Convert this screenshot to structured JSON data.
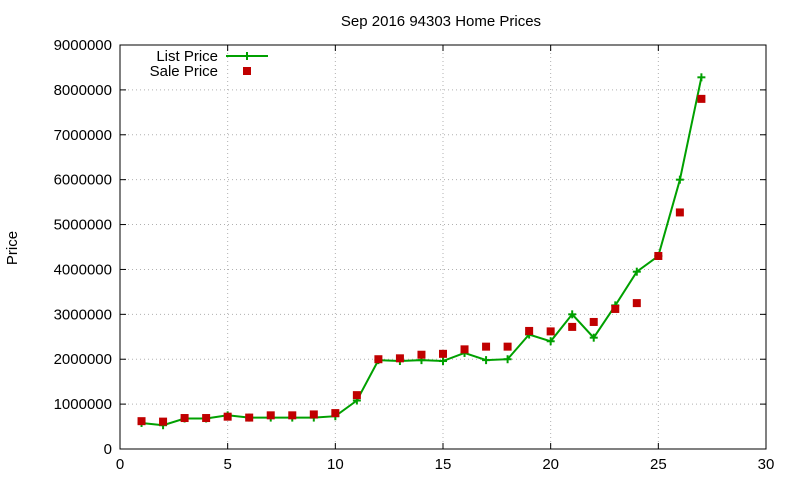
{
  "chart_data": {
    "type": "line",
    "title": "Sep 2016 94303 Home Prices",
    "xlabel": "",
    "ylabel": "Price",
    "xlim": [
      0,
      30
    ],
    "ylim": [
      0,
      9000000
    ],
    "x_ticks": [
      0,
      5,
      10,
      15,
      20,
      25,
      30
    ],
    "y_ticks": [
      0,
      1000000,
      2000000,
      3000000,
      4000000,
      5000000,
      6000000,
      7000000,
      8000000,
      9000000
    ],
    "x_tick_labels": [
      "0",
      "5",
      "10",
      "15",
      "20",
      "25",
      "30"
    ],
    "y_tick_labels": [
      "0",
      "1000000",
      "2000000",
      "3000000",
      "4000000",
      "5000000",
      "6000000",
      "7000000",
      "8000000",
      "9000000"
    ],
    "grid": true,
    "legend_position": "top-left",
    "x": [
      1,
      2,
      3,
      4,
      5,
      6,
      7,
      8,
      9,
      10,
      11,
      12,
      13,
      14,
      15,
      16,
      17,
      18,
      19,
      20,
      21,
      22,
      23,
      24,
      25,
      26,
      27
    ],
    "series": [
      {
        "name": "List Price",
        "style": "line+plus",
        "color": "#00a000",
        "values": [
          580000,
          530000,
          680000,
          680000,
          750000,
          700000,
          700000,
          700000,
          700000,
          730000,
          1080000,
          1980000,
          1960000,
          1980000,
          1960000,
          2140000,
          1980000,
          2000000,
          2550000,
          2400000,
          3000000,
          2480000,
          3200000,
          3950000,
          4300000,
          6000000,
          8280000
        ]
      },
      {
        "name": "Sale Price",
        "style": "square",
        "color": "#c00000",
        "values": [
          620000,
          610000,
          690000,
          690000,
          720000,
          700000,
          750000,
          750000,
          770000,
          800000,
          1200000,
          2000000,
          2020000,
          2100000,
          2120000,
          2220000,
          2280000,
          2280000,
          2630000,
          2620000,
          2720000,
          2830000,
          3120000,
          3250000,
          4300000,
          5270000,
          7800000
        ]
      }
    ]
  }
}
